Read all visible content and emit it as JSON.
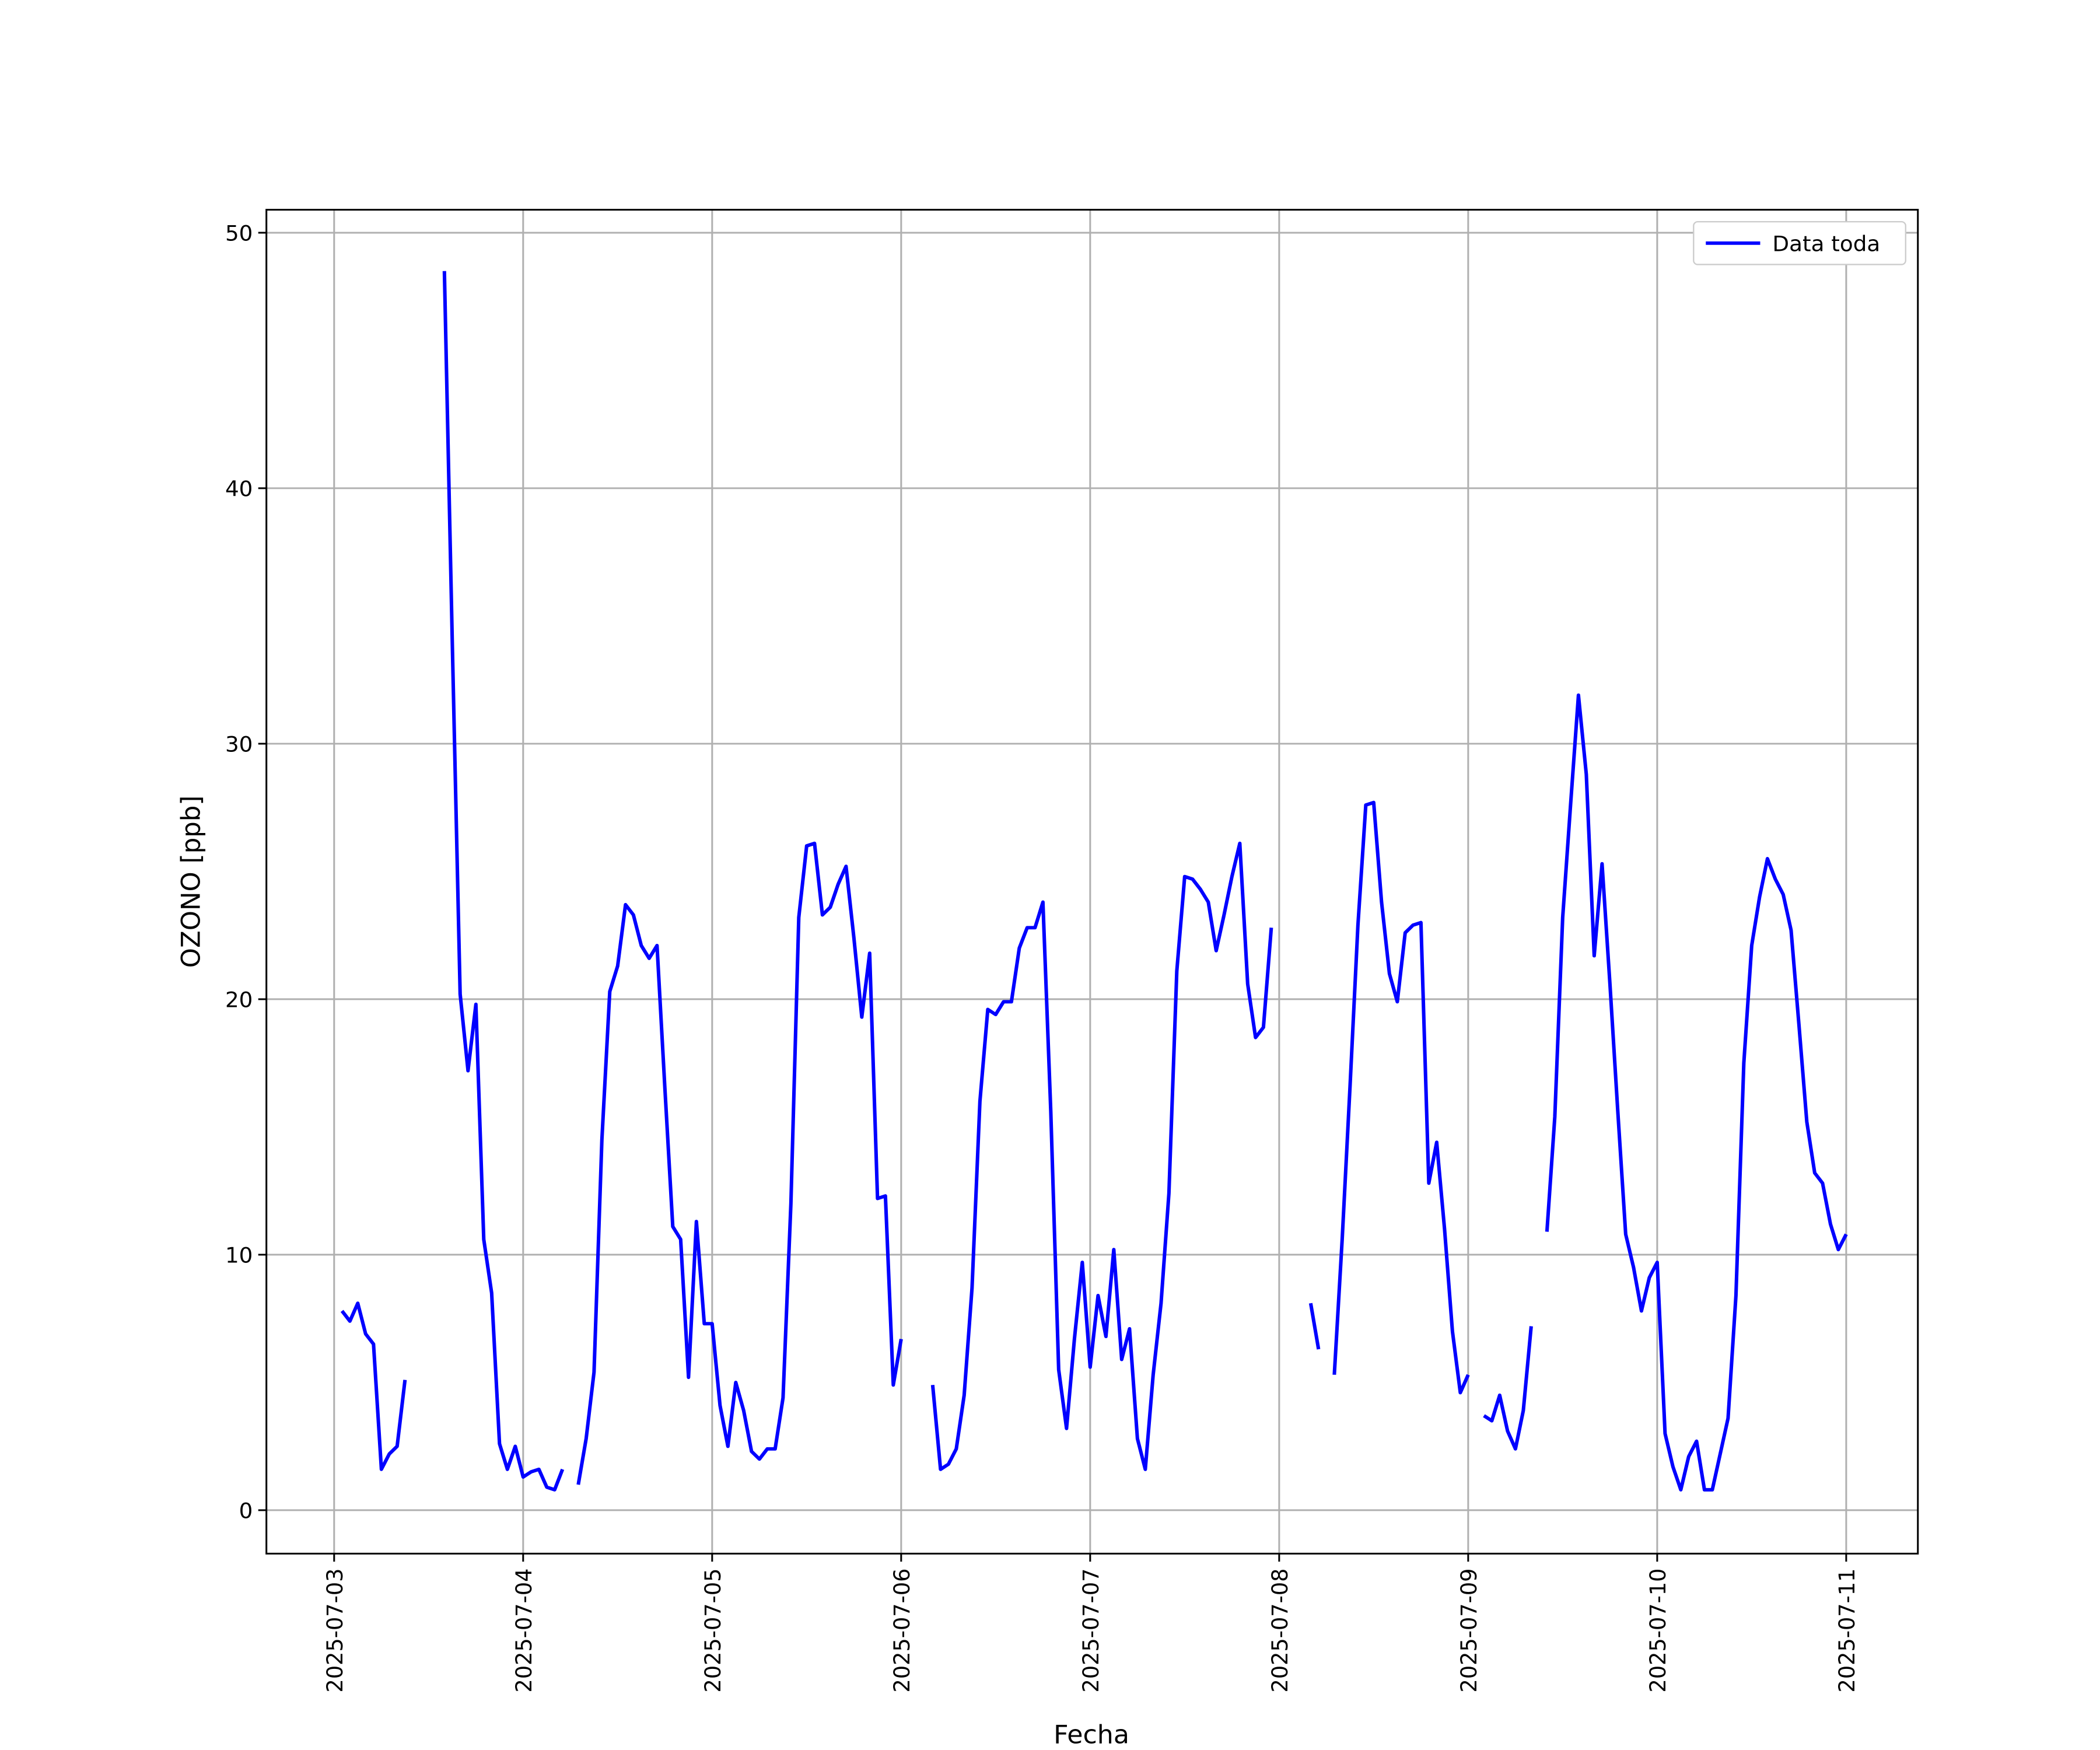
{
  "chart_data": {
    "type": "line",
    "x_label": "Fecha",
    "y_label": "OZONO [ppb]",
    "x": [
      1,
      2,
      3,
      4,
      5,
      6,
      7,
      8,
      9,
      10,
      11,
      12,
      13,
      14,
      15,
      16,
      17,
      18,
      19,
      20,
      21,
      22,
      23,
      24,
      25,
      26,
      27,
      28,
      29,
      30,
      31,
      32,
      33,
      34,
      35,
      36,
      37,
      38,
      39,
      40,
      41,
      42,
      43,
      44,
      45,
      46,
      47,
      48,
      49,
      50,
      51,
      52,
      53,
      54,
      55,
      56,
      57,
      58,
      59,
      60,
      61,
      62,
      63,
      64,
      65,
      66,
      67,
      68,
      69,
      70,
      71,
      72,
      73,
      74,
      75,
      76,
      77,
      78,
      79,
      80,
      81,
      82,
      83,
      84,
      85,
      86,
      87,
      88,
      89,
      90,
      91,
      92,
      93,
      94,
      95,
      96,
      97,
      98,
      99,
      100,
      101,
      102,
      103,
      104,
      105,
      106,
      107,
      108,
      109,
      110,
      111,
      112,
      113,
      114,
      115,
      116,
      117,
      118,
      119,
      120,
      121,
      122,
      123,
      124,
      125,
      126,
      127,
      128,
      129,
      130,
      131,
      132,
      133,
      134,
      135,
      136,
      137,
      138,
      139,
      140,
      141,
      142,
      143,
      144,
      145,
      146,
      147,
      148,
      149,
      150,
      151,
      152,
      153,
      154,
      155,
      156,
      157,
      158,
      159,
      160,
      161,
      162,
      163,
      164,
      165,
      166,
      167,
      168,
      169,
      170,
      171,
      172,
      173,
      174,
      175,
      176,
      177,
      178,
      179,
      180,
      181,
      182,
      183,
      184,
      185,
      186,
      187,
      188,
      189,
      190,
      191,
      192
    ],
    "series": [
      {
        "name": "Data toda",
        "color": "#0000ff",
        "values": [
          7.8,
          7.4,
          8.1,
          6.9,
          6.5,
          1.6,
          2.2,
          2.5,
          5.1,
          null,
          null,
          null,
          null,
          48.5,
          34,
          20.2,
          17.2,
          19.8,
          10.6,
          8.5,
          2.6,
          1.6,
          2.5,
          1.3,
          1.5,
          1.6,
          0.9,
          0.8,
          1.6,
          null,
          1.0,
          2.8,
          5.4,
          14.5,
          20.3,
          21.3,
          23.7,
          23.3,
          22.1,
          21.6,
          22.1,
          16.5,
          11.1,
          10.6,
          5.2,
          11.3,
          7.3,
          7.3,
          4.1,
          2.5,
          5.0,
          3.9,
          2.3,
          2.0,
          2.4,
          2.4,
          4.4,
          12.0,
          23.2,
          26.0,
          26.1,
          23.3,
          23.6,
          24.5,
          25.2,
          22.4,
          19.3,
          21.8,
          12.2,
          12.3,
          4.9,
          6.7,
          null,
          null,
          null,
          4.9,
          1.6,
          1.8,
          2.4,
          4.5,
          8.7,
          16.0,
          19.6,
          19.4,
          19.9,
          19.9,
          22.0,
          22.8,
          22.8,
          23.8,
          15.6,
          5.5,
          3.2,
          6.7,
          9.7,
          5.6,
          8.4,
          6.8,
          10.2,
          5.9,
          7.1,
          2.8,
          1.6,
          5.3,
          8.1,
          12.4,
          21.1,
          24.8,
          24.7,
          24.3,
          23.8,
          21.9,
          23.3,
          24.8,
          26.1,
          20.6,
          18.5,
          18.9,
          22.8,
          null,
          null,
          null,
          null,
          8.1,
          6.3,
          null,
          5.3,
          10.6,
          16.6,
          22.9,
          27.6,
          27.7,
          23.8,
          21.0,
          19.9,
          22.6,
          22.9,
          23.0,
          12.8,
          14.4,
          11.0,
          7.0,
          4.6,
          5.3,
          null,
          3.7,
          3.5,
          4.5,
          3.1,
          2.4,
          3.9,
          7.2,
          null,
          10.9,
          15.4,
          23.2,
          27.6,
          31.9,
          28.8,
          21.7,
          25.3,
          20.6,
          15.6,
          10.8,
          9.5,
          7.8,
          9.1,
          9.7,
          3.0,
          1.7,
          0.8,
          2.1,
          2.7,
          0.8,
          0.8,
          2.2,
          3.6,
          8.4,
          17.5,
          22.1,
          24.0,
          25.5,
          24.7,
          24.1,
          22.7,
          19.0,
          15.2,
          13.2,
          12.8,
          11.2,
          10.2,
          10.8
        ]
      }
    ],
    "xlim": [
      -8.6,
      201.1
    ],
    "ylim": [
      -1.7,
      50.9
    ],
    "xticks": [
      {
        "value": 0,
        "label": "2025-07-03"
      },
      {
        "value": 24,
        "label": "2025-07-04"
      },
      {
        "value": 48,
        "label": "2025-07-05"
      },
      {
        "value": 72,
        "label": "2025-07-06"
      },
      {
        "value": 96,
        "label": "2025-07-07"
      },
      {
        "value": 120,
        "label": "2025-07-08"
      },
      {
        "value": 144,
        "label": "2025-07-09"
      },
      {
        "value": 168,
        "label": "2025-07-10"
      },
      {
        "value": 192,
        "label": "2025-07-11"
      }
    ],
    "yticks": [
      0,
      10,
      20,
      30,
      40,
      50
    ],
    "grid": true,
    "legend": "upper-right"
  }
}
